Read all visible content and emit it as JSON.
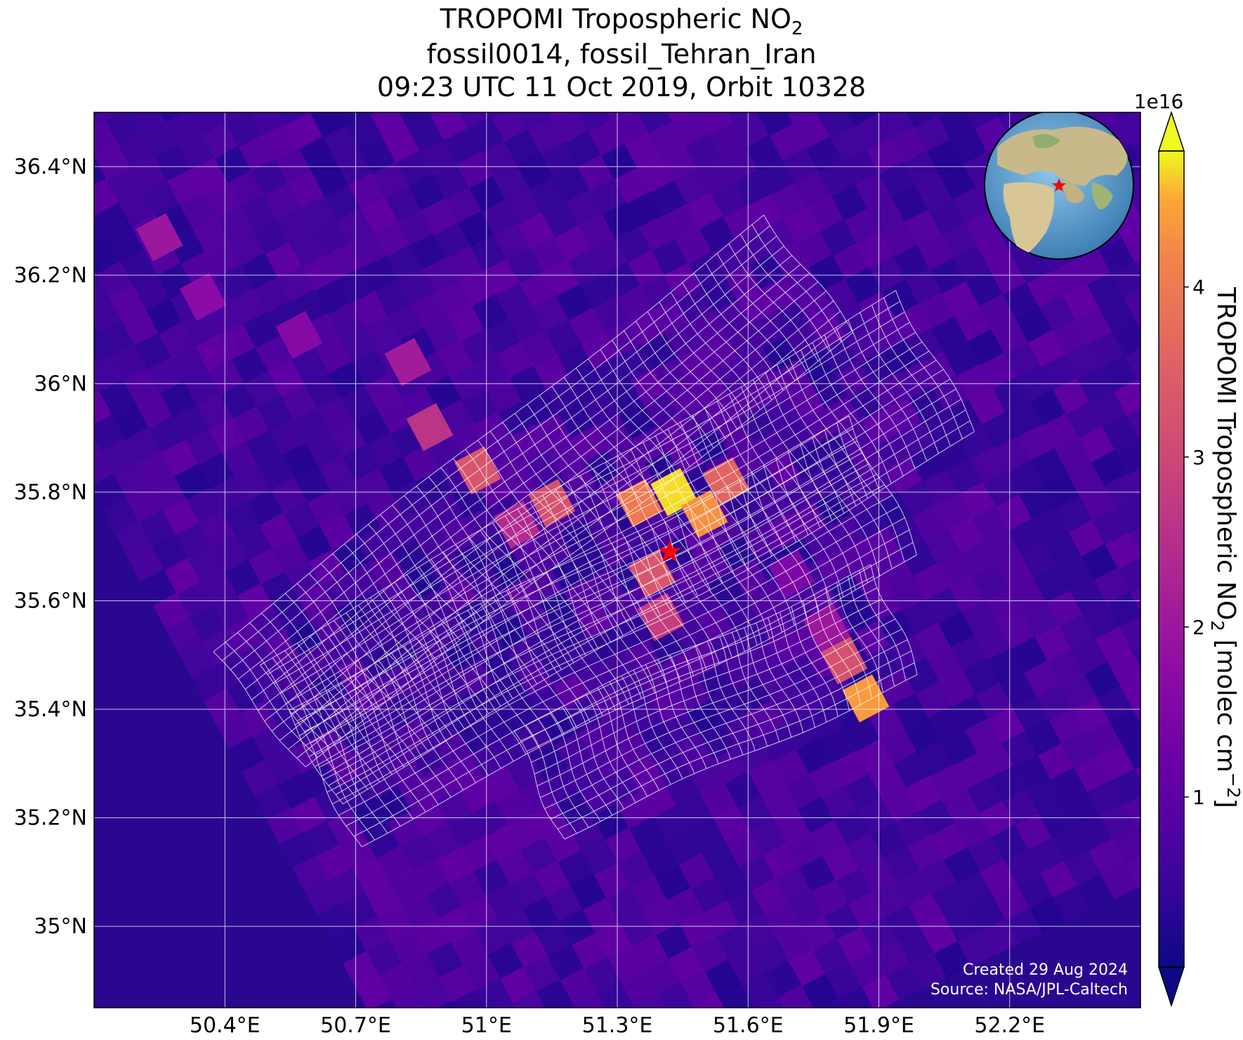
{
  "title": {
    "line1_main": "TROPOMI Tropospheric NO",
    "line1_sub": "2",
    "line2": "fossil0014, fossil_Tehran_Iran",
    "line3": "09:23 UTC 11 Oct 2019, Orbit 10328"
  },
  "map": {
    "type": "geographic-heatmap",
    "lon_range": [
      50.1,
      52.5
    ],
    "lat_range": [
      34.85,
      36.5
    ],
    "xticks": [
      {
        "value": 50.4,
        "label": "50.4°E"
      },
      {
        "value": 50.7,
        "label": "50.7°E"
      },
      {
        "value": 51.0,
        "label": "51°E"
      },
      {
        "value": 51.3,
        "label": "51.3°E"
      },
      {
        "value": 51.6,
        "label": "51.6°E"
      },
      {
        "value": 51.9,
        "label": "51.9°E"
      },
      {
        "value": 52.2,
        "label": "52.2°E"
      }
    ],
    "yticks": [
      {
        "value": 35.0,
        "label": "35°N"
      },
      {
        "value": 35.2,
        "label": "35.2°N"
      },
      {
        "value": 35.4,
        "label": "35.4°N"
      },
      {
        "value": 35.6,
        "label": "35.6°N"
      },
      {
        "value": 35.8,
        "label": "35.8°N"
      },
      {
        "value": 36.0,
        "label": "36°N"
      },
      {
        "value": 36.2,
        "label": "36.2°N"
      },
      {
        "value": 36.4,
        "label": "36.4°N"
      }
    ],
    "grid": true,
    "site_marker": {
      "lon": 51.42,
      "lat": 35.69,
      "symbol": "star",
      "color": "#ff0000"
    },
    "hotspots": [
      {
        "lon": 51.43,
        "lat": 35.8,
        "value": 4.7
      },
      {
        "lon": 51.5,
        "lat": 35.76,
        "value": 4.3
      },
      {
        "lon": 51.35,
        "lat": 35.78,
        "value": 4.0
      },
      {
        "lon": 51.55,
        "lat": 35.82,
        "value": 3.6
      },
      {
        "lon": 51.15,
        "lat": 35.78,
        "value": 3.2
      },
      {
        "lon": 51.38,
        "lat": 35.65,
        "value": 3.3
      },
      {
        "lon": 51.4,
        "lat": 35.57,
        "value": 2.8
      },
      {
        "lon": 50.98,
        "lat": 35.84,
        "value": 3.3
      },
      {
        "lon": 50.87,
        "lat": 35.92,
        "value": 2.6
      },
      {
        "lon": 50.82,
        "lat": 36.04,
        "value": 2.1
      },
      {
        "lon": 51.07,
        "lat": 35.74,
        "value": 2.4
      },
      {
        "lon": 51.87,
        "lat": 35.42,
        "value": 4.4
      },
      {
        "lon": 51.82,
        "lat": 35.49,
        "value": 3.2
      },
      {
        "lon": 51.78,
        "lat": 35.55,
        "value": 2.0
      },
      {
        "lon": 50.25,
        "lat": 36.27,
        "value": 2.0
      },
      {
        "lon": 50.35,
        "lat": 36.16,
        "value": 1.7
      },
      {
        "lon": 50.57,
        "lat": 36.09,
        "value": 1.6
      },
      {
        "lon": 51.7,
        "lat": 35.65,
        "value": 1.5
      }
    ]
  },
  "colorbar": {
    "label_main": "TROPOMI Tropospheric NO",
    "label_sub": "2",
    "label_tail": " [molec cm",
    "label_sup": "−2",
    "label_end": "]",
    "exponent": "1e16",
    "ticks": [
      {
        "value": 1,
        "label": "1"
      },
      {
        "value": 2,
        "label": "2"
      },
      {
        "value": 3,
        "label": "3"
      },
      {
        "value": 4,
        "label": "4"
      }
    ],
    "range": [
      0,
      4.8
    ],
    "colormap": "plasma",
    "extend": "both"
  },
  "inset_globe": {
    "marker": "star",
    "marker_color": "#ff0000"
  },
  "credits": {
    "created": "Created 29 Aug 2024",
    "source": "Source: NASA/JPL-Caltech"
  }
}
